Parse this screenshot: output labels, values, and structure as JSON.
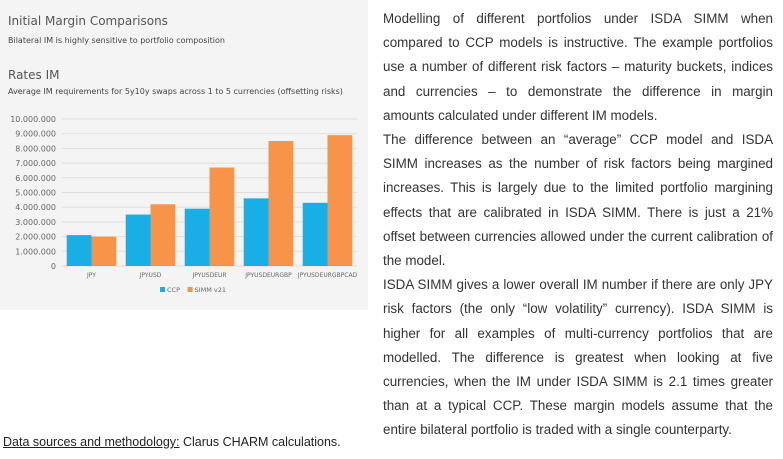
{
  "chart_data": {
    "type": "bar",
    "title": "Initial Margin Comparisons",
    "subtitle": "Bilateral IM is highly sensitive to portfolio composition",
    "panel_title": "Rates IM",
    "panel_subtitle": "Average IM requirements for 5y10y swaps across 1 to 5 currencies (offsetting risks)",
    "categories": [
      "JPY",
      "JPYUSD",
      "JPYUSDEUR",
      "JPYUSDEURGBP",
      "JPYUSDEURGBPCAD"
    ],
    "series": [
      {
        "name": "CCP",
        "color": "#1aaee6",
        "values": [
          2100000,
          3500000,
          3900000,
          4600000,
          4300000
        ]
      },
      {
        "name": "SIMM v21",
        "color": "#f7944a",
        "values": [
          2000000,
          4200000,
          6700000,
          8500000,
          8900000
        ]
      }
    ],
    "ylim": [
      0,
      10000000
    ],
    "yticks": [
      "0",
      "1.000.000",
      "2.000.000",
      "3.000.000",
      "4.000.000",
      "5.000.000",
      "6.000.000",
      "7.000.000",
      "8.000.000",
      "9.000.000",
      "10.000.000"
    ],
    "grid": true,
    "legend_position": "bottom-center"
  },
  "article": {
    "paragraphs": [
      "Modelling of different portfolios under ISDA SIMM when compared to CCP models is instructive. The example portfolios use a number of different risk factors – maturity buckets, indices and currencies – to demonstrate the difference in margin amounts calculated under different IM models.",
      "The difference between an “average” CCP model and ISDA SIMM increases as the number of risk factors being margined increases. This is largely due to the limited portfolio margining effects that are calibrated in ISDA SIMM. There is just a 21% offset between currencies allowed under the current calibration of the model.",
      "ISDA SIMM gives a lower overall IM number if there are only JPY risk factors (the only “low volatility” currency). ISDA SIMM is higher for all examples of multi-currency portfolios that are modelled. The difference is greatest when looking at five currencies, when the IM under ISDA SIMM is 2.1 times greater than at a typical CCP. These margin models assume that the entire bilateral portfolio is traded with a single counterparty."
    ]
  },
  "footnote": {
    "label": "Data sources and methodology:",
    "text": " Clarus CHARM calculations."
  }
}
